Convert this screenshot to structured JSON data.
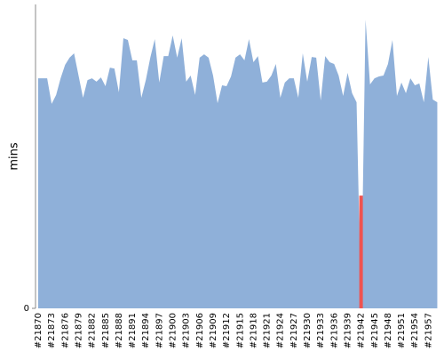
{
  "chart_data": {
    "type": "area",
    "y_label": "mins",
    "categories": [
      "#21870",
      null,
      null,
      "#21873",
      null,
      null,
      "#21876",
      null,
      null,
      "#21879",
      null,
      null,
      "#21882",
      null,
      null,
      "#21885",
      null,
      null,
      "#21888",
      null,
      null,
      "#21891",
      null,
      null,
      "#21894",
      null,
      null,
      "#21897",
      null,
      null,
      "#21900",
      null,
      null,
      "#21903",
      null,
      null,
      "#21906",
      null,
      null,
      "#21909",
      null,
      null,
      "#21912",
      null,
      null,
      "#21915",
      null,
      null,
      "#21918",
      null,
      null,
      "#21921",
      null,
      null,
      "#21924",
      null,
      null,
      "#21927",
      null,
      null,
      "#21930",
      null,
      null,
      "#21933",
      null,
      null,
      "#21936",
      null,
      null,
      "#21939",
      null,
      null,
      "#21942",
      null,
      null,
      "#21945",
      null,
      null,
      "#21948",
      null,
      null,
      "#21951",
      null,
      null,
      "#21954",
      null,
      null,
      "#21957",
      null,
      null
    ],
    "series": [
      {
        "color": "#8fb0d9",
        "values": [
          7.57,
          7.57,
          7.57,
          6.73,
          7.02,
          7.57,
          8.01,
          8.25,
          8.39,
          7.66,
          6.93,
          7.51,
          7.57,
          7.46,
          7.6,
          7.31,
          7.92,
          7.89,
          7.11,
          8.89,
          8.83,
          8.16,
          8.16,
          6.93,
          7.51,
          8.25,
          8.86,
          7.43,
          8.3,
          8.3,
          8.98,
          8.25,
          8.89,
          7.46,
          7.66,
          7.02,
          8.25,
          8.36,
          8.25,
          7.66,
          6.75,
          7.34,
          7.31,
          7.63,
          8.25,
          8.36,
          8.16,
          8.86,
          8.1,
          8.3,
          7.43,
          7.46,
          7.66,
          8.04,
          6.93,
          7.43,
          7.57,
          7.57,
          6.93,
          8.39,
          7.46,
          8.27,
          8.25,
          6.84,
          8.3,
          8.1,
          8.04,
          7.66,
          6.99,
          7.75,
          7.08,
          6.78,
          0,
          9.5,
          7.37,
          7.57,
          7.63,
          7.66,
          8.04,
          8.83,
          6.99,
          7.43,
          7.08,
          7.57,
          7.34,
          7.4,
          6.78,
          8.27,
          6.87,
          6.78
        ]
      },
      {
        "color": "#ef5350",
        "values": [
          null,
          null,
          null,
          null,
          null,
          null,
          null,
          null,
          null,
          null,
          null,
          null,
          null,
          null,
          null,
          null,
          null,
          null,
          null,
          null,
          null,
          null,
          null,
          null,
          null,
          null,
          null,
          null,
          null,
          null,
          null,
          null,
          null,
          null,
          null,
          null,
          null,
          null,
          null,
          null,
          null,
          null,
          null,
          null,
          null,
          null,
          null,
          null,
          null,
          null,
          null,
          null,
          null,
          null,
          null,
          null,
          null,
          null,
          null,
          null,
          null,
          null,
          null,
          null,
          null,
          null,
          null,
          null,
          null,
          null,
          null,
          null,
          3.71,
          null,
          null,
          null,
          null,
          null,
          null,
          null,
          null,
          null,
          null,
          null,
          null,
          null,
          null,
          null,
          null,
          null
        ]
      }
    ],
    "ylim": [
      0,
      10
    ],
    "yticks": [
      0
    ]
  }
}
